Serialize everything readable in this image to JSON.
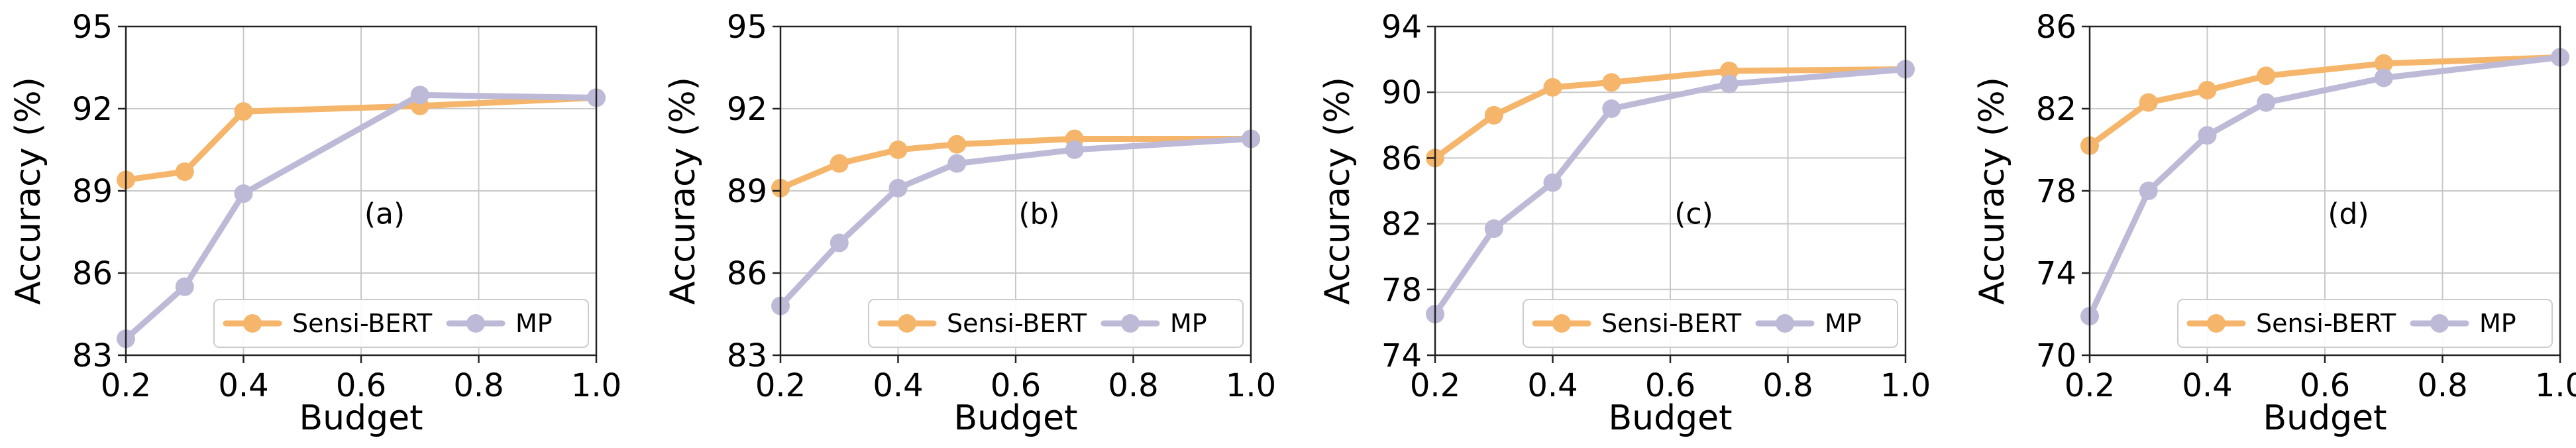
{
  "chart_data": [
    {
      "type": "line",
      "panel_label": "(a)",
      "xlabel": "Budget",
      "ylabel": "Accuracy (%)",
      "xlim": [
        0.2,
        1.0
      ],
      "ylim": [
        83,
        95
      ],
      "xticks": [
        "0.2",
        "0.4",
        "0.6",
        "0.8",
        "1.0"
      ],
      "yticks": [
        "83",
        "86",
        "89",
        "92",
        "95"
      ],
      "grid": true,
      "legend_position": "bottom",
      "series": [
        {
          "name": "Sensi-BERT",
          "color": "#F5B66B",
          "x": [
            0.2,
            0.3,
            0.4,
            0.7,
            1.0
          ],
          "y": [
            89.4,
            89.7,
            91.9,
            92.1,
            92.4
          ]
        },
        {
          "name": "MP",
          "color": "#BDBAD8",
          "x": [
            0.2,
            0.3,
            0.4,
            0.7,
            1.0
          ],
          "y": [
            83.6,
            85.5,
            88.9,
            92.5,
            92.4
          ]
        }
      ]
    },
    {
      "type": "line",
      "panel_label": "(b)",
      "xlabel": "Budget",
      "ylabel": "Accuracy (%)",
      "xlim": [
        0.2,
        1.0
      ],
      "ylim": [
        83,
        95
      ],
      "xticks": [
        "0.2",
        "0.4",
        "0.6",
        "0.8",
        "1.0"
      ],
      "yticks": [
        "83",
        "86",
        "89",
        "92",
        "95"
      ],
      "grid": true,
      "legend_position": "bottom",
      "series": [
        {
          "name": "Sensi-BERT",
          "color": "#F5B66B",
          "x": [
            0.2,
            0.3,
            0.4,
            0.5,
            0.7,
            1.0
          ],
          "y": [
            89.1,
            90.0,
            90.5,
            90.7,
            90.9,
            90.9
          ]
        },
        {
          "name": "MP",
          "color": "#BDBAD8",
          "x": [
            0.2,
            0.3,
            0.4,
            0.5,
            0.7,
            1.0
          ],
          "y": [
            84.8,
            87.1,
            89.1,
            90.0,
            90.5,
            90.9
          ]
        }
      ]
    },
    {
      "type": "line",
      "panel_label": "(c)",
      "xlabel": "Budget",
      "ylabel": "Accuracy (%)",
      "xlim": [
        0.2,
        1.0
      ],
      "ylim": [
        74,
        94
      ],
      "xticks": [
        "0.2",
        "0.4",
        "0.6",
        "0.8",
        "1.0"
      ],
      "yticks": [
        "74",
        "78",
        "82",
        "86",
        "90",
        "94"
      ],
      "grid": true,
      "legend_position": "bottom",
      "series": [
        {
          "name": "Sensi-BERT",
          "color": "#F5B66B",
          "x": [
            0.2,
            0.3,
            0.4,
            0.5,
            0.7,
            1.0
          ],
          "y": [
            86.0,
            88.6,
            90.3,
            90.6,
            91.3,
            91.4
          ]
        },
        {
          "name": "MP",
          "color": "#BDBAD8",
          "x": [
            0.2,
            0.3,
            0.4,
            0.5,
            0.7,
            1.0
          ],
          "y": [
            76.5,
            81.7,
            84.5,
            89.0,
            90.5,
            91.4
          ]
        }
      ]
    },
    {
      "type": "line",
      "panel_label": "(d)",
      "xlabel": "Budget",
      "ylabel": "Accuracy (%)",
      "xlim": [
        0.2,
        1.0
      ],
      "ylim": [
        70,
        86
      ],
      "xticks": [
        "0.2",
        "0.4",
        "0.6",
        "0.8",
        "1.0"
      ],
      "yticks": [
        "70",
        "74",
        "78",
        "82",
        "86"
      ],
      "grid": true,
      "legend_position": "bottom",
      "series": [
        {
          "name": "Sensi-BERT",
          "color": "#F5B66B",
          "x": [
            0.2,
            0.3,
            0.4,
            0.5,
            0.7,
            1.0
          ],
          "y": [
            80.2,
            82.3,
            82.9,
            83.6,
            84.2,
            84.5
          ]
        },
        {
          "name": "MP",
          "color": "#BDBAD8",
          "x": [
            0.2,
            0.3,
            0.4,
            0.5,
            0.7,
            1.0
          ],
          "y": [
            71.9,
            78.0,
            80.7,
            82.3,
            83.5,
            84.5
          ]
        }
      ]
    }
  ]
}
